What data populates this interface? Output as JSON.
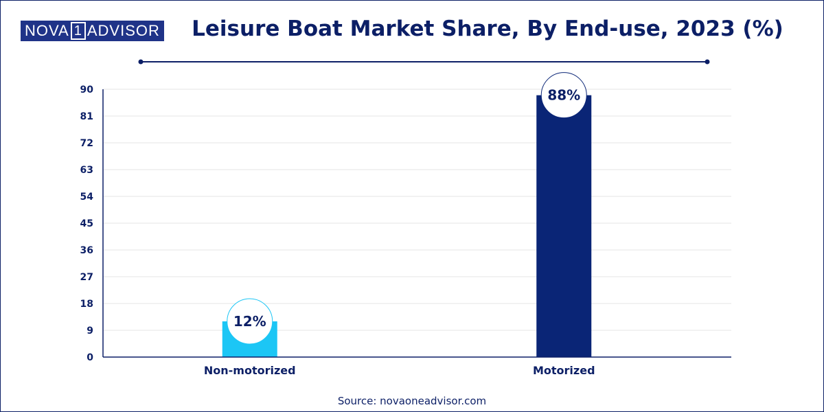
{
  "brand": {
    "part1": "NOVA",
    "part2": "1",
    "part3": "ADVISOR"
  },
  "title": "Leisure Boat Market Share, By End-use, 2023 (%)",
  "source": "Source: novaoneadvisor.com",
  "colors": {
    "navy": "#0c1f66",
    "bar_light": "#1cc6f5",
    "bar_dark": "#0a2576",
    "grid": "#e6e6e6"
  },
  "chart_data": {
    "type": "bar",
    "categories": [
      "Non-motorized",
      "Motorized"
    ],
    "values": [
      12,
      88
    ],
    "data_labels": [
      "12%",
      "88%"
    ],
    "bar_colors": [
      "#1cc6f5",
      "#0a2576"
    ],
    "yticks": [
      0,
      9,
      18,
      27,
      36,
      45,
      54,
      63,
      72,
      81,
      90
    ],
    "ylim": [
      0,
      90
    ],
    "grid": true
  }
}
